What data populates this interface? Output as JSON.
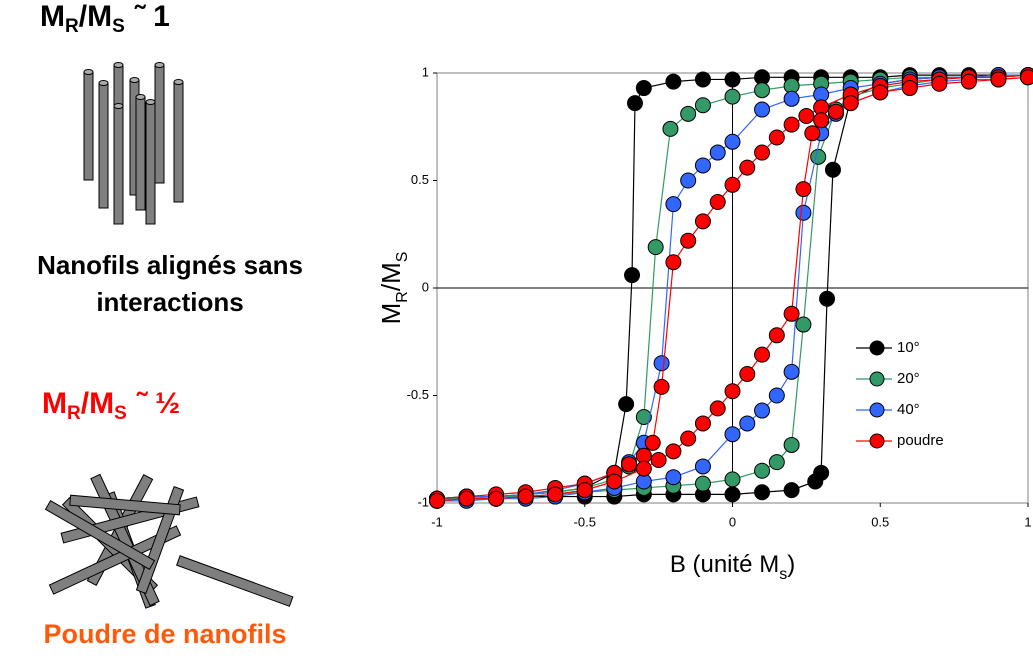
{
  "left": {
    "top_label": [
      "M",
      "R",
      "/M",
      "S",
      "˜ 1"
    ],
    "top_caption": [
      "Nanofils alignés sans",
      "interactions"
    ],
    "bottom_label": [
      "M",
      "R",
      "/M",
      "S",
      "˜ ½"
    ],
    "bottom_caption": "Poudre de nanofils"
  },
  "chart_data": {
    "type": "line",
    "markers": true,
    "ylabel": [
      "M",
      "R",
      "/M",
      "S"
    ],
    "xlabel": [
      "B (unité M",
      "s",
      ")"
    ],
    "xlim": [
      -1,
      1
    ],
    "ylim": [
      -1,
      1
    ],
    "xticks": [
      -1,
      -0.5,
      0,
      0.5,
      1
    ],
    "yticks": [
      -1,
      -0.5,
      0,
      0.5,
      1
    ],
    "grid": false,
    "legend": "center right",
    "series": [
      {
        "name": "10°",
        "color": "#000000",
        "x": [
          1,
          0.9,
          0.8,
          0.7,
          0.6,
          0.5,
          0.4,
          0.3,
          0.2,
          0.1,
          0,
          -0.1,
          -0.2,
          -0.3,
          -0.33,
          -0.34,
          -0.36,
          -0.4,
          -0.5,
          -0.6,
          -0.7,
          -0.8,
          -0.9,
          -1,
          -1,
          -0.9,
          -0.8,
          -0.7,
          -0.6,
          -0.5,
          -0.4,
          -0.3,
          -0.2,
          -0.1,
          0,
          0.1,
          0.2,
          0.28,
          0.3,
          0.32,
          0.34,
          0.4,
          0.5,
          0.6,
          0.7,
          0.8,
          0.9,
          1
        ],
        "values": [
          0.99,
          0.99,
          0.99,
          0.99,
          0.99,
          0.98,
          0.98,
          0.98,
          0.98,
          0.98,
          0.97,
          0.97,
          0.96,
          0.93,
          0.86,
          0.06,
          -0.54,
          -0.86,
          -0.93,
          -0.95,
          -0.96,
          -0.97,
          -0.97,
          -0.98,
          -0.98,
          -0.98,
          -0.98,
          -0.97,
          -0.97,
          -0.97,
          -0.97,
          -0.96,
          -0.96,
          -0.96,
          -0.96,
          -0.95,
          -0.94,
          -0.9,
          -0.86,
          -0.05,
          0.55,
          0.88,
          0.95,
          0.97,
          0.98,
          0.98,
          0.99,
          0.99
        ]
      },
      {
        "name": "20°",
        "color": "#339966",
        "x": [
          1,
          0.9,
          0.8,
          0.7,
          0.6,
          0.5,
          0.4,
          0.3,
          0.2,
          0.1,
          0,
          -0.1,
          -0.15,
          -0.21,
          -0.26,
          -0.3,
          -0.35,
          -0.4,
          -0.5,
          -0.6,
          -0.7,
          -0.8,
          -0.9,
          -1,
          -1,
          -0.9,
          -0.8,
          -0.7,
          -0.6,
          -0.5,
          -0.4,
          -0.3,
          -0.2,
          -0.1,
          0,
          0.1,
          0.15,
          0.2,
          0.24,
          0.29,
          0.35,
          0.4,
          0.5,
          0.6,
          0.7,
          0.8,
          0.9,
          1
        ],
        "values": [
          0.99,
          0.99,
          0.98,
          0.98,
          0.98,
          0.97,
          0.96,
          0.95,
          0.94,
          0.92,
          0.89,
          0.85,
          0.81,
          0.74,
          0.19,
          -0.6,
          -0.83,
          -0.89,
          -0.93,
          -0.95,
          -0.96,
          -0.97,
          -0.97,
          -0.98,
          -0.98,
          -0.98,
          -0.97,
          -0.97,
          -0.96,
          -0.95,
          -0.94,
          -0.93,
          -0.92,
          -0.91,
          -0.89,
          -0.85,
          -0.81,
          -0.73,
          -0.17,
          0.61,
          0.83,
          0.89,
          0.93,
          0.95,
          0.97,
          0.98,
          0.98,
          0.99
        ]
      },
      {
        "name": "40°",
        "color": "#3366ff",
        "x": [
          1,
          0.9,
          0.8,
          0.7,
          0.6,
          0.5,
          0.4,
          0.3,
          0.2,
          0.1,
          0,
          -0.05,
          -0.1,
          -0.15,
          -0.2,
          -0.24,
          -0.3,
          -0.35,
          -0.4,
          -0.5,
          -0.6,
          -0.7,
          -0.8,
          -0.9,
          -1,
          -1,
          -0.9,
          -0.8,
          -0.7,
          -0.6,
          -0.5,
          -0.4,
          -0.3,
          -0.2,
          -0.1,
          0,
          0.05,
          0.1,
          0.15,
          0.2,
          0.24,
          0.3,
          0.35,
          0.4,
          0.5,
          0.6,
          0.7,
          0.8,
          0.9,
          1
        ],
        "values": [
          0.99,
          0.99,
          0.98,
          0.98,
          0.97,
          0.95,
          0.93,
          0.9,
          0.88,
          0.83,
          0.68,
          0.63,
          0.57,
          0.5,
          0.39,
          -0.35,
          -0.72,
          -0.81,
          -0.86,
          -0.91,
          -0.94,
          -0.96,
          -0.97,
          -0.97,
          -0.98,
          -0.99,
          -0.99,
          -0.98,
          -0.98,
          -0.97,
          -0.95,
          -0.93,
          -0.9,
          -0.88,
          -0.83,
          -0.68,
          -0.63,
          -0.57,
          -0.5,
          -0.39,
          0.35,
          0.72,
          0.81,
          0.86,
          0.91,
          0.94,
          0.96,
          0.97,
          0.97,
          0.98
        ]
      },
      {
        "name": "poudre",
        "color": "#ff0000",
        "x": [
          1,
          0.9,
          0.8,
          0.7,
          0.6,
          0.5,
          0.4,
          0.3,
          0.25,
          0.2,
          0.15,
          0.1,
          0.05,
          0,
          -0.05,
          -0.1,
          -0.15,
          -0.2,
          -0.24,
          -0.27,
          -0.3,
          -0.35,
          -0.4,
          -0.5,
          -0.6,
          -0.7,
          -0.8,
          -0.9,
          -1,
          -1,
          -0.9,
          -0.8,
          -0.7,
          -0.6,
          -0.5,
          -0.4,
          -0.3,
          -0.25,
          -0.2,
          -0.15,
          -0.1,
          -0.05,
          0,
          0.05,
          0.1,
          0.15,
          0.2,
          0.24,
          0.27,
          0.3,
          0.35,
          0.4,
          0.5,
          0.6,
          0.7,
          0.8,
          0.9,
          1
        ],
        "values": [
          0.99,
          0.98,
          0.98,
          0.97,
          0.96,
          0.94,
          0.9,
          0.84,
          0.8,
          0.76,
          0.7,
          0.63,
          0.56,
          0.48,
          0.4,
          0.31,
          0.22,
          0.12,
          -0.46,
          -0.72,
          -0.78,
          -0.82,
          -0.86,
          -0.91,
          -0.93,
          -0.95,
          -0.96,
          -0.97,
          -0.98,
          -0.99,
          -0.98,
          -0.98,
          -0.97,
          -0.96,
          -0.94,
          -0.9,
          -0.84,
          -0.8,
          -0.76,
          -0.7,
          -0.63,
          -0.56,
          -0.48,
          -0.4,
          -0.31,
          -0.22,
          -0.12,
          0.46,
          0.72,
          0.78,
          0.82,
          0.86,
          0.91,
          0.93,
          0.95,
          0.96,
          0.97,
          0.98
        ]
      }
    ]
  }
}
